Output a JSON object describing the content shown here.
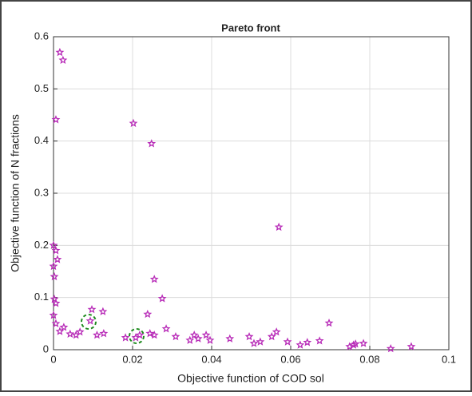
{
  "chart_data": {
    "type": "scatter",
    "title": "Pareto front",
    "x_label": "Objective function of COD sol",
    "y_label": "Objective function of N fractions",
    "color": "#b82cb8",
    "grid": true,
    "xlim": [
      0,
      0.1
    ],
    "ylim": [
      0,
      0.6
    ],
    "xticks": [
      0,
      0.02,
      0.04,
      0.06,
      0.08,
      0.1
    ],
    "yticks": [
      0,
      0.1,
      0.2,
      0.3,
      0.4,
      0.5,
      0.6
    ],
    "x": [
      0.0016,
      0.0024,
      0.0006,
      0.0202,
      0.0248,
      0.057,
      0.0255,
      0,
      0.0006,
      0.001,
      0,
      0.0002,
      0.0002,
      0.0006,
      0,
      0.0006,
      0.0016,
      0.0026,
      0.0042,
      0.0057,
      0.0067,
      0.0093,
      0.0097,
      0.011,
      0.0125,
      0.0127,
      0.0182,
      0.0208,
      0.0218,
      0.0238,
      0.0244,
      0.0255,
      0.0275,
      0.0285,
      0.0309,
      0.0345,
      0.0356,
      0.0366,
      0.0386,
      0.0396,
      0.0446,
      0.0495,
      0.0507,
      0.0523,
      0.0552,
      0.0564,
      0.0592,
      0.0624,
      0.0642,
      0.0673,
      0.0697,
      0.0749,
      0.0759,
      0.0764,
      0.0784,
      0.0853,
      0.0905
    ],
    "values": [
      0.57,
      0.555,
      0.441,
      0.434,
      0.395,
      0.235,
      0.135,
      0.2,
      0.19,
      0.173,
      0.16,
      0.14,
      0.097,
      0.089,
      0.066,
      0.05,
      0.035,
      0.043,
      0.03,
      0.028,
      0.034,
      0.055,
      0.077,
      0.028,
      0.073,
      0.031,
      0.023,
      0.023,
      0.028,
      0.068,
      0.031,
      0.028,
      0.098,
      0.04,
      0.025,
      0.018,
      0.028,
      0.021,
      0.028,
      0.018,
      0.021,
      0.025,
      0.012,
      0.015,
      0.025,
      0.034,
      0.015,
      0.009,
      0.014,
      0.017,
      0.051,
      0.006,
      0.009,
      0.011,
      0.012,
      0.002,
      0.006
    ]
  }
}
